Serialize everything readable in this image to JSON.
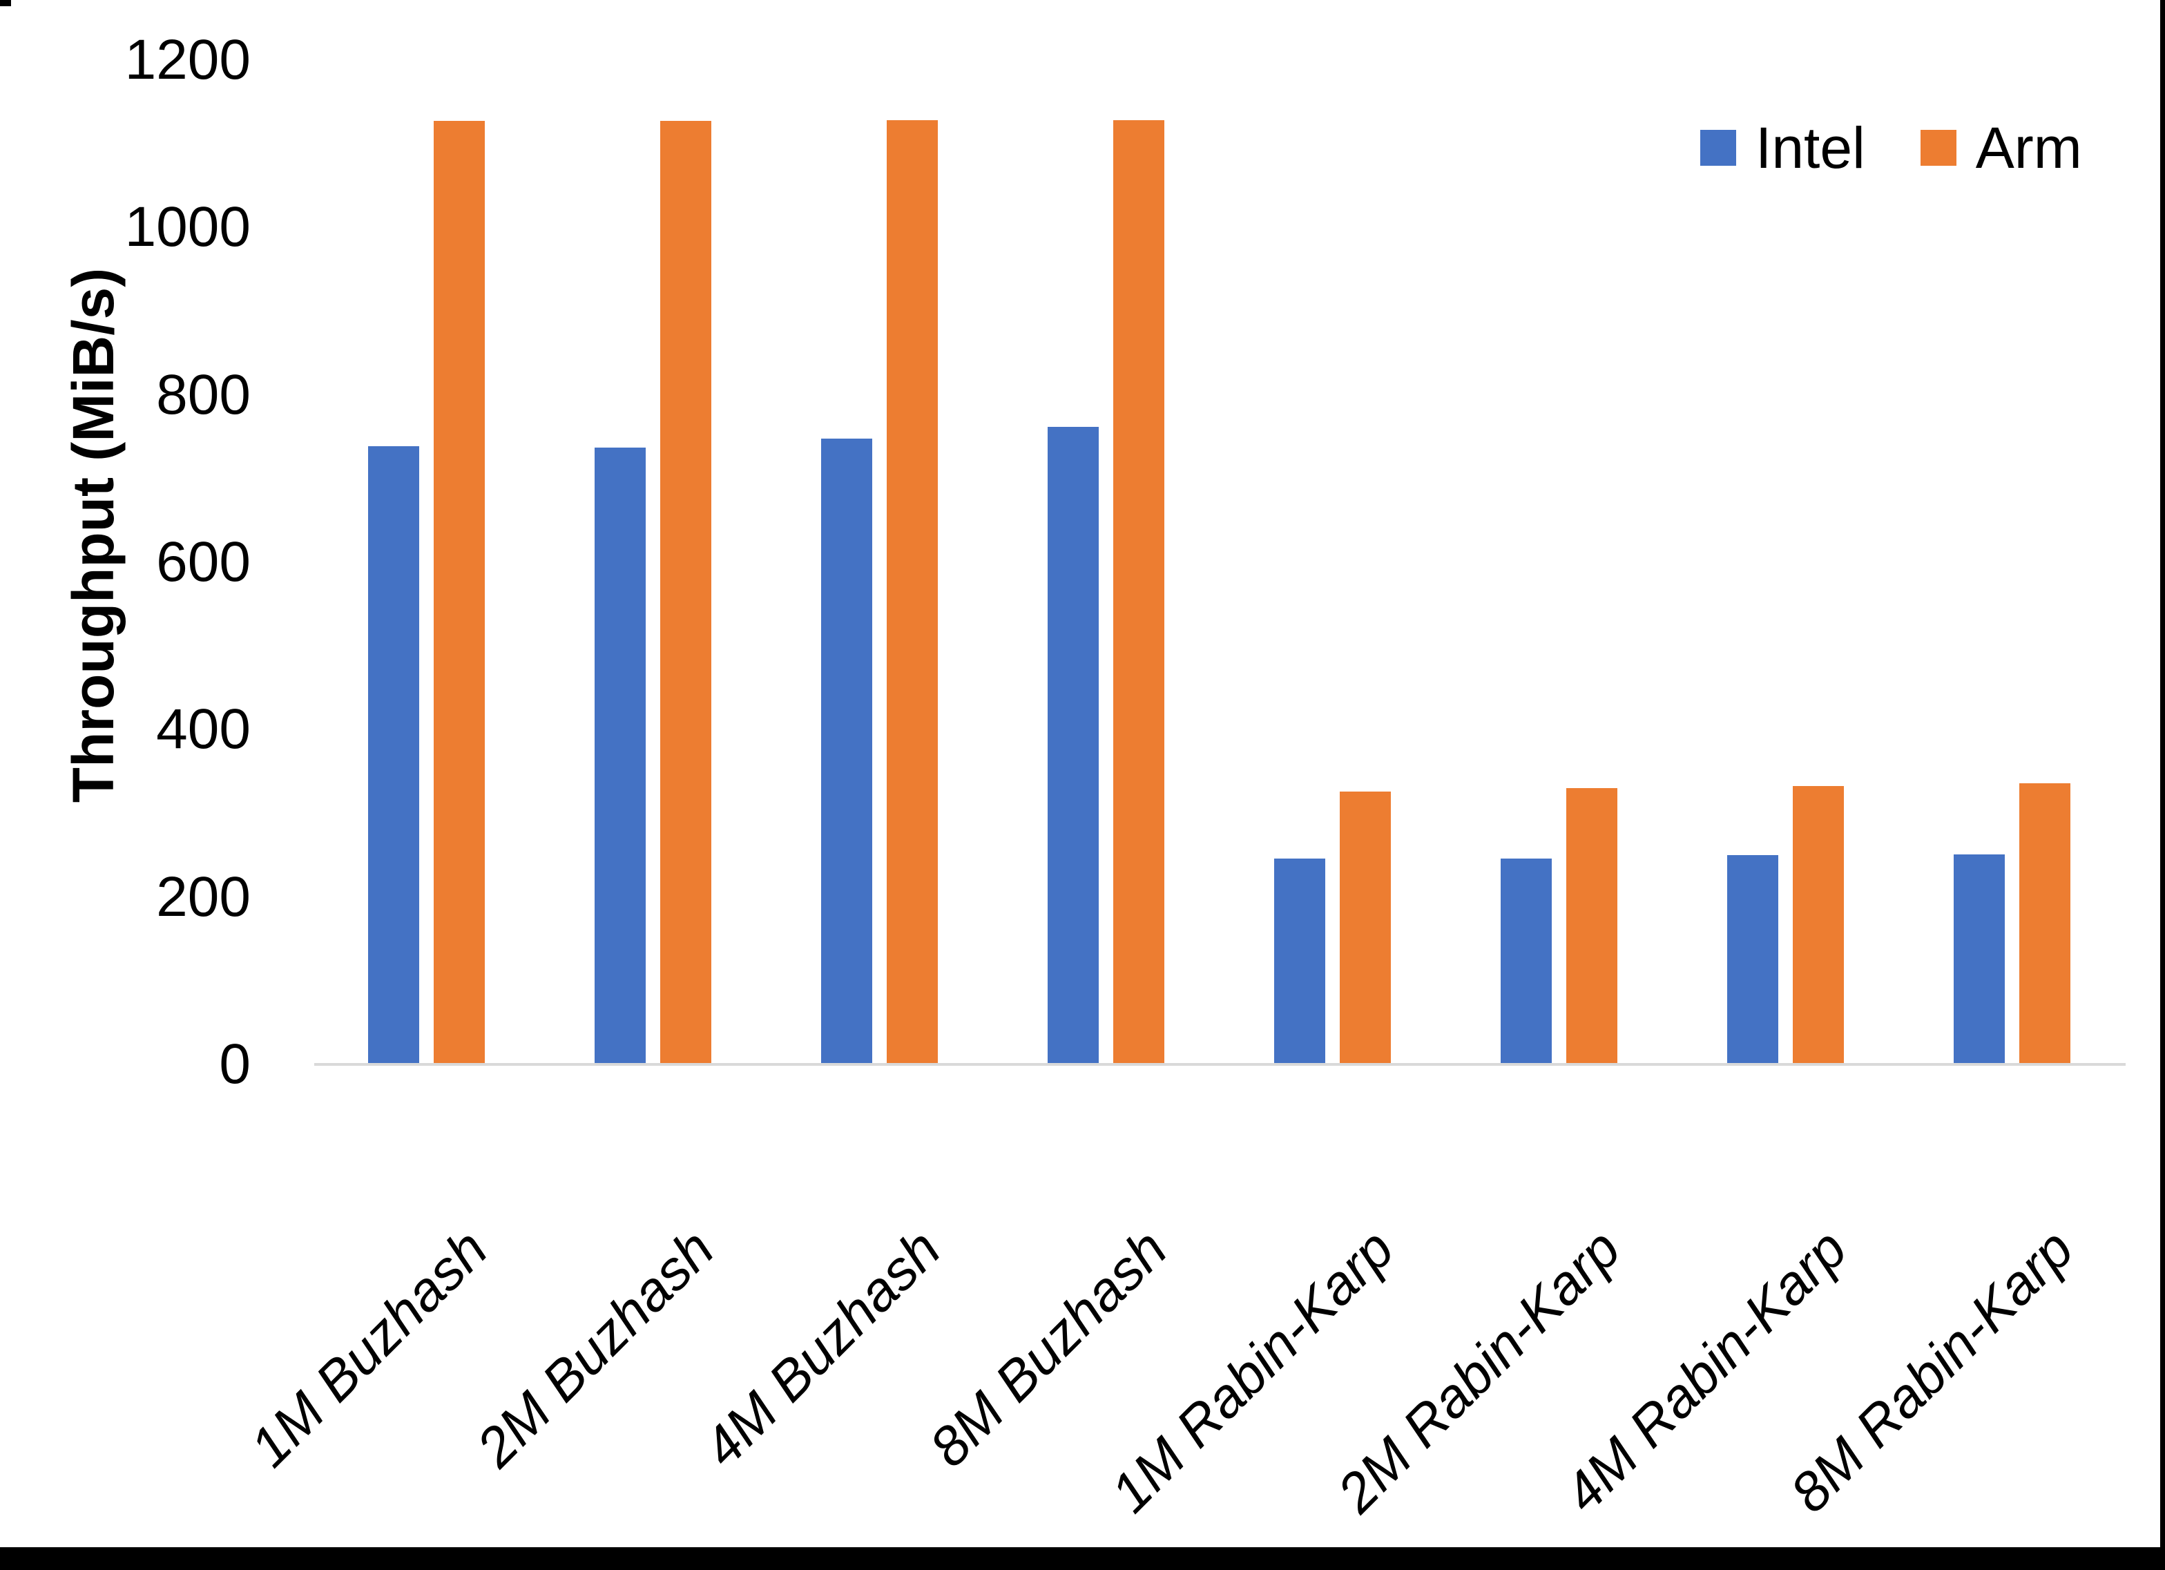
{
  "chart_data": {
    "type": "bar",
    "title": "",
    "xlabel": "",
    "ylabel": "Throughput (MiB/s)",
    "ylim": [
      0,
      1200
    ],
    "yticks": [
      0,
      200,
      400,
      600,
      800,
      1000,
      1200
    ],
    "grid": false,
    "legend_position": "top-right",
    "categories": [
      "1M Buzhash",
      "2M Buzhash",
      "4M Buzhash",
      "8M Buzhash",
      "1M Rabin-Karp",
      "2M Rabin-Karp",
      "4M Rabin-Karp",
      "8M Rabin-Karp"
    ],
    "series": [
      {
        "name": "Intel",
        "color": "#4472C4",
        "values": [
          739,
          737,
          748,
          762,
          246,
          246,
          250,
          251
        ]
      },
      {
        "name": "Arm",
        "color": "#ED7D31",
        "values": [
          1127,
          1127,
          1128,
          1128,
          326,
          330,
          333,
          336
        ]
      }
    ],
    "axis_line_color": "#D9D9D9",
    "text_color": "#000000"
  }
}
